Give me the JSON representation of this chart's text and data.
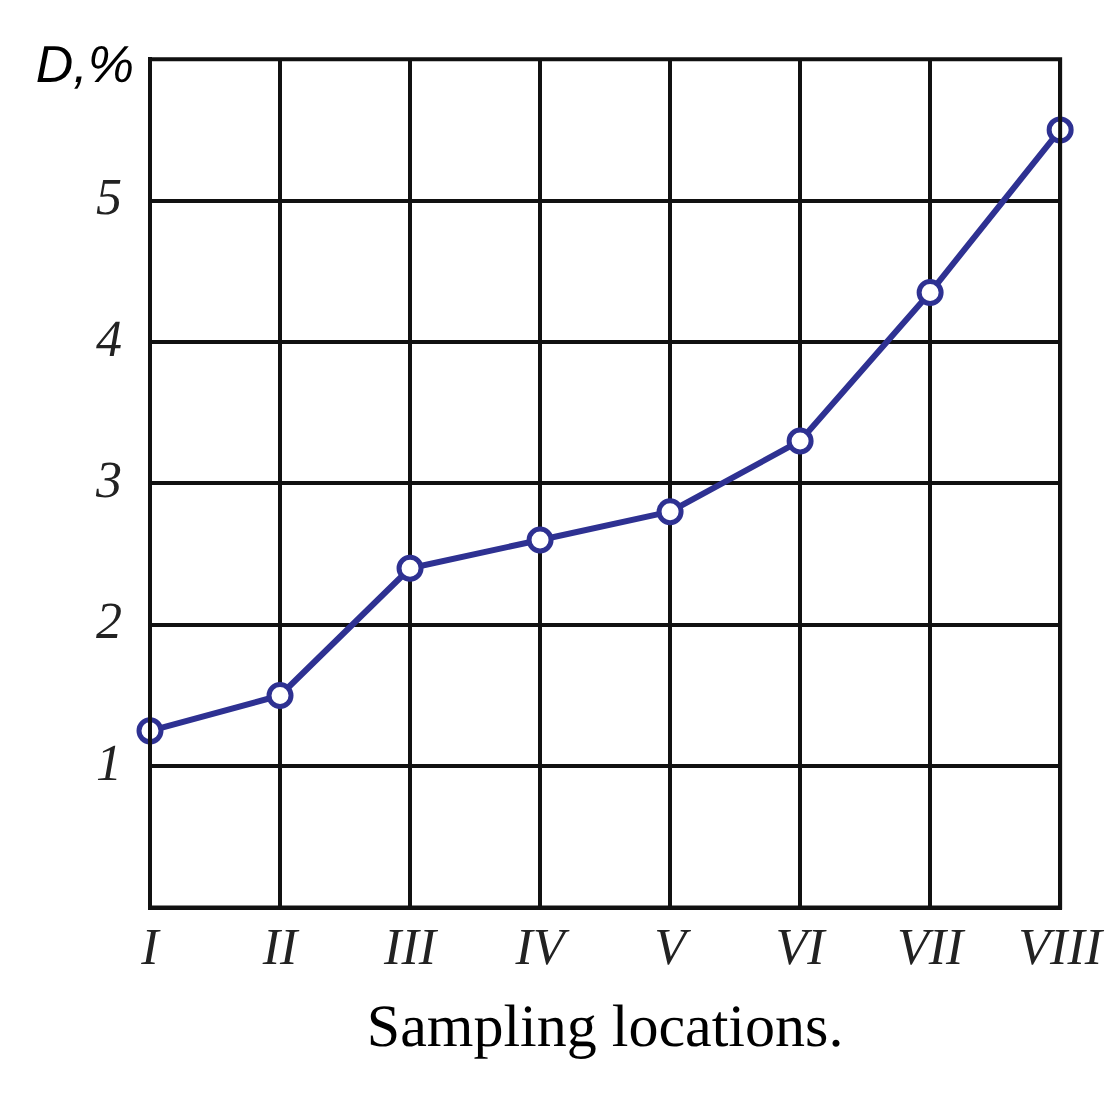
{
  "chart_data": {
    "type": "line",
    "ylabel": "D,%",
    "xlabel": "Sampling locations.",
    "categories": [
      "I",
      "II",
      "III",
      "IV",
      "V",
      "VI",
      "VII",
      "VIII"
    ],
    "series": [
      {
        "color": "#2e3192",
        "values": [
          1.25,
          1.5,
          2.4,
          2.6,
          2.8,
          3.3,
          4.35,
          5.5
        ]
      }
    ],
    "ylim": [
      0,
      6
    ],
    "yticks": [
      1,
      2,
      3,
      4,
      5
    ],
    "grid": true,
    "legend": false,
    "marker": "circle",
    "line_style": "solid"
  }
}
